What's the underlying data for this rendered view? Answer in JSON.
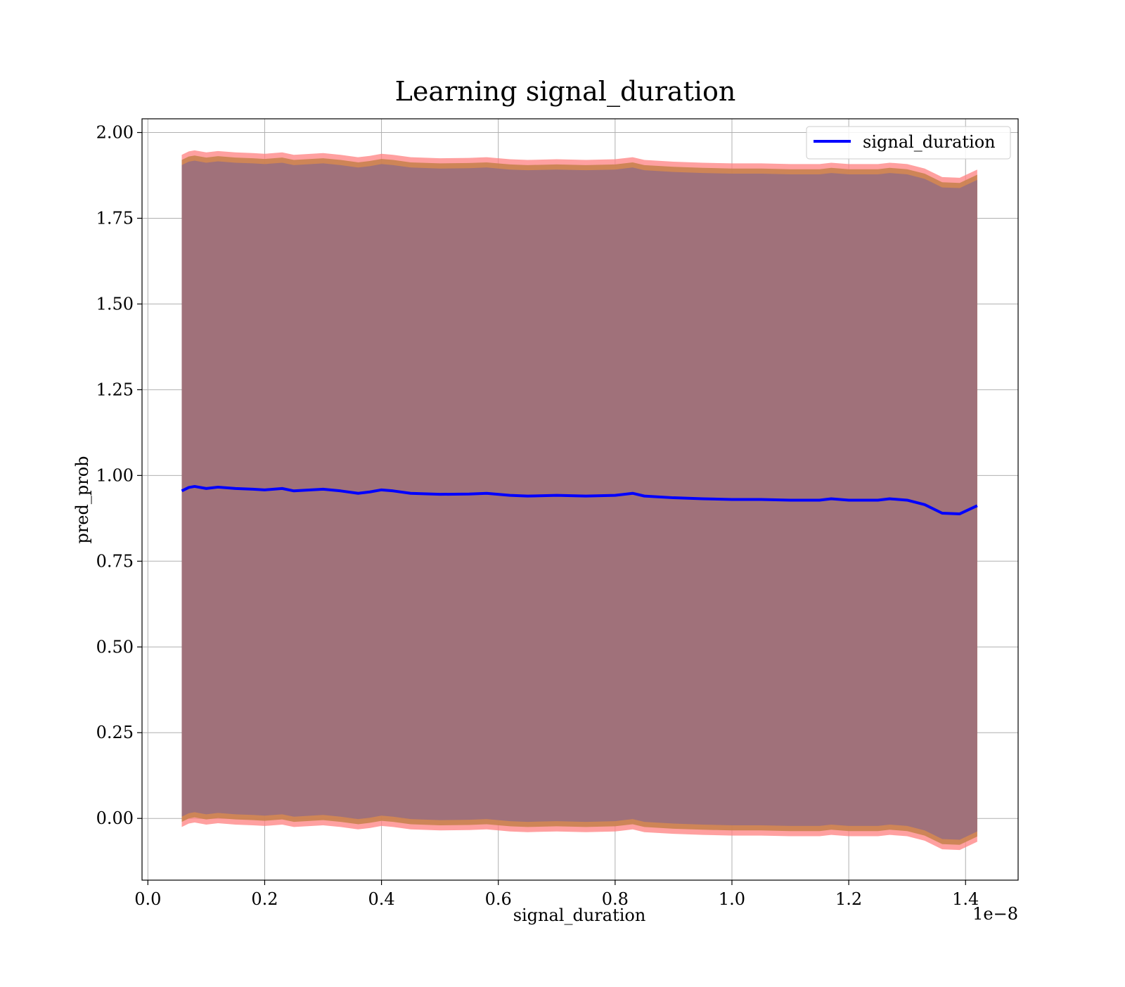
{
  "chart_data": {
    "type": "line",
    "title": "Learning signal_duration",
    "xlabel": "signal_duration",
    "ylabel": "pred_prob",
    "x_offset_text": "1e−8",
    "xlim": [
      -0.01,
      1.49
    ],
    "ylim": [
      -0.18,
      2.04
    ],
    "xticks": [
      0.0,
      0.2,
      0.4,
      0.6,
      0.8,
      1.0,
      1.2,
      1.4
    ],
    "xtick_labels": [
      "0.0",
      "0.2",
      "0.4",
      "0.6",
      "0.8",
      "1.0",
      "1.2",
      "1.4"
    ],
    "yticks": [
      0.0,
      0.25,
      0.5,
      0.75,
      1.0,
      1.25,
      1.5,
      1.75,
      2.0
    ],
    "ytick_labels": [
      "0.00",
      "0.25",
      "0.50",
      "0.75",
      "1.00",
      "1.25",
      "1.50",
      "1.75",
      "2.00"
    ],
    "grid": true,
    "legend": {
      "position": "top-right",
      "entries": [
        "signal_duration"
      ]
    },
    "colors": {
      "line": "#0000ff",
      "band_outer": "#ff8080",
      "band_middle": "#c9824f",
      "band_inner": "#a0717a"
    },
    "series": [
      {
        "name": "signal_duration",
        "x": [
          0.058,
          0.07,
          0.08,
          0.1,
          0.12,
          0.15,
          0.18,
          0.2,
          0.23,
          0.25,
          0.3,
          0.33,
          0.36,
          0.38,
          0.4,
          0.42,
          0.45,
          0.5,
          0.55,
          0.58,
          0.62,
          0.65,
          0.7,
          0.75,
          0.8,
          0.83,
          0.85,
          0.9,
          0.95,
          1.0,
          1.05,
          1.1,
          1.15,
          1.17,
          1.2,
          1.25,
          1.27,
          1.3,
          1.33,
          1.36,
          1.39,
          1.42
        ],
        "y": [
          0.955,
          0.965,
          0.968,
          0.962,
          0.966,
          0.962,
          0.96,
          0.958,
          0.962,
          0.955,
          0.96,
          0.955,
          0.948,
          0.952,
          0.958,
          0.955,
          0.948,
          0.945,
          0.946,
          0.948,
          0.942,
          0.94,
          0.942,
          0.94,
          0.942,
          0.948,
          0.94,
          0.935,
          0.932,
          0.93,
          0.93,
          0.928,
          0.928,
          0.932,
          0.928,
          0.928,
          0.932,
          0.928,
          0.915,
          0.89,
          0.888,
          0.912
        ]
      }
    ]
  }
}
